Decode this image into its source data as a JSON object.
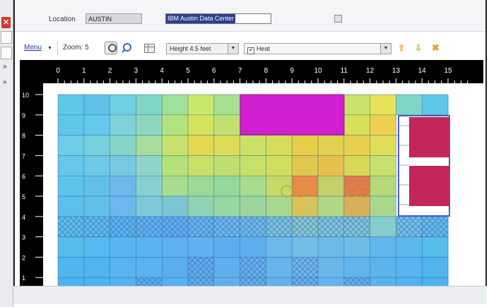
{
  "location": {
    "label": "Location",
    "value": "AUSTIN",
    "datacenter": "IBM Austin Data Center"
  },
  "toolbar": {
    "menu_label": "Menu",
    "zoom_label": "Zoom: 5",
    "height_value": "Height 4.5 feet",
    "overlay_value": "Heat",
    "overlay_checked": true
  },
  "ruler": {
    "x_ticks": [
      "0",
      "1",
      "2",
      "3",
      "4",
      "5",
      "6",
      "7",
      "8",
      "9",
      "10",
      "11",
      "12",
      "13",
      "14",
      "15"
    ],
    "y_ticks": [
      "10",
      "9",
      "8",
      "7",
      "6",
      "5",
      "4",
      "3",
      "2",
      "1"
    ]
  },
  "colors": {
    "rack_magenta": "#d21fd1",
    "rack_crimson": "#c3265a",
    "ruler_bg": "#000000",
    "accent": "#1c3c8e"
  },
  "icons": [
    "zoom-in-icon",
    "zoom-out-icon",
    "grid-icon",
    "dropdown-arrow-icon",
    "checkbox-icon",
    "arrow-up-icon",
    "arrow-down-icon",
    "delete-x-icon",
    "close-icon"
  ]
}
